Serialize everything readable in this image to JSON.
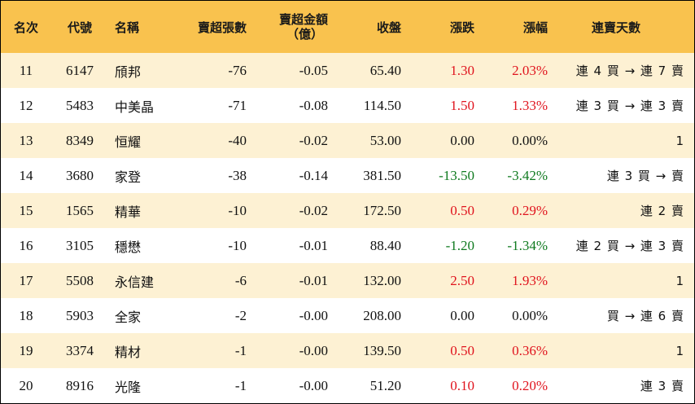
{
  "header": {
    "rank": "名次",
    "code": "代號",
    "name": "名稱",
    "lots": "賣超張數",
    "amount_line1": "賣超金額",
    "amount_line2": "（億）",
    "close": "收盤",
    "change": "漲跌",
    "pct": "漲幅",
    "days": "連賣天數"
  },
  "rows": [
    {
      "rank": "11",
      "code": "6147",
      "name": "頎邦",
      "lots": "-76",
      "amount": "-0.05",
      "close": "65.40",
      "change": "1.30",
      "pct": "2.03%",
      "days": "連 4 買 → 連 7 賣",
      "trend": "up"
    },
    {
      "rank": "12",
      "code": "5483",
      "name": "中美晶",
      "lots": "-71",
      "amount": "-0.08",
      "close": "114.50",
      "change": "1.50",
      "pct": "1.33%",
      "days": "連 3 買 → 連 3 賣",
      "trend": "up"
    },
    {
      "rank": "13",
      "code": "8349",
      "name": "恒耀",
      "lots": "-40",
      "amount": "-0.02",
      "close": "53.00",
      "change": "0.00",
      "pct": "0.00%",
      "days": "1",
      "trend": "flat"
    },
    {
      "rank": "14",
      "code": "3680",
      "name": "家登",
      "lots": "-38",
      "amount": "-0.14",
      "close": "381.50",
      "change": "-13.50",
      "pct": "-3.42%",
      "days": "連 3 買 → 賣",
      "trend": "down"
    },
    {
      "rank": "15",
      "code": "1565",
      "name": "精華",
      "lots": "-10",
      "amount": "-0.02",
      "close": "172.50",
      "change": "0.50",
      "pct": "0.29%",
      "days": "連 2 賣",
      "trend": "up"
    },
    {
      "rank": "16",
      "code": "3105",
      "name": "穩懋",
      "lots": "-10",
      "amount": "-0.01",
      "close": "88.40",
      "change": "-1.20",
      "pct": "-1.34%",
      "days": "連 2 買 → 連 3 賣",
      "trend": "down"
    },
    {
      "rank": "17",
      "code": "5508",
      "name": "永信建",
      "lots": "-6",
      "amount": "-0.01",
      "close": "132.00",
      "change": "2.50",
      "pct": "1.93%",
      "days": "1",
      "trend": "up"
    },
    {
      "rank": "18",
      "code": "5903",
      "name": "全家",
      "lots": "-2",
      "amount": "-0.00",
      "close": "208.00",
      "change": "0.00",
      "pct": "0.00%",
      "days": "買 → 連 6 賣",
      "trend": "flat"
    },
    {
      "rank": "19",
      "code": "3374",
      "name": "精材",
      "lots": "-1",
      "amount": "-0.00",
      "close": "139.50",
      "change": "0.50",
      "pct": "0.36%",
      "days": "1",
      "trend": "up"
    },
    {
      "rank": "20",
      "code": "8916",
      "name": "光隆",
      "lots": "-1",
      "amount": "-0.00",
      "close": "51.20",
      "change": "0.10",
      "pct": "0.20%",
      "days": "連 3 賣",
      "trend": "up"
    }
  ],
  "colors": {
    "header_bg": "#f9c24e",
    "row_odd_bg": "#fdf1d3",
    "row_even_bg": "#ffffff",
    "up": "#e0141e",
    "down": "#0f7a1f",
    "flat": "#111111"
  }
}
